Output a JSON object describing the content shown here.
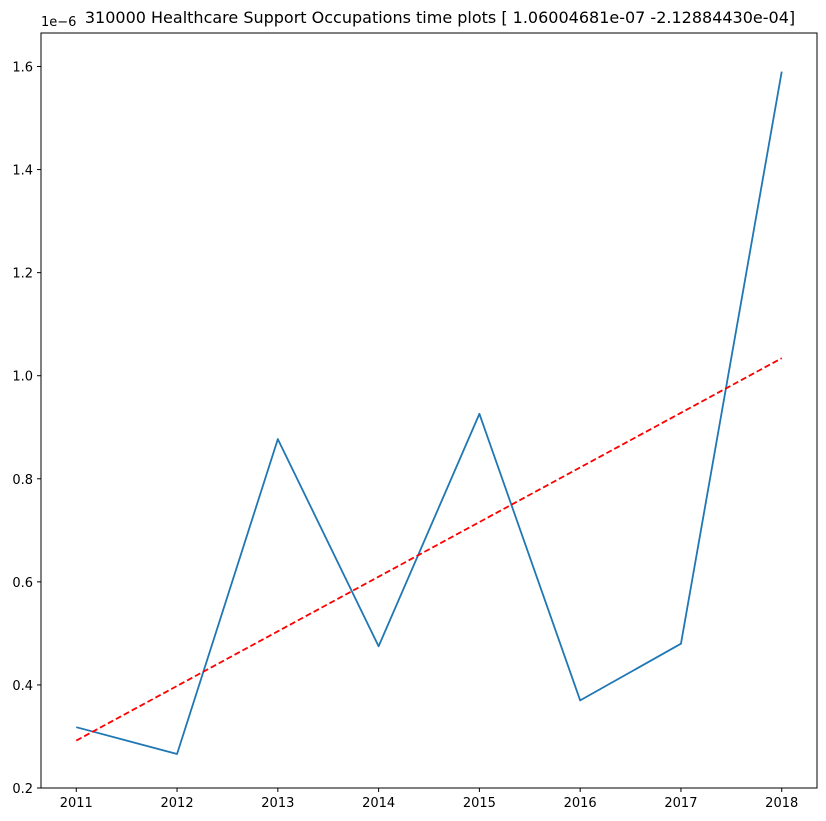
{
  "chart_data": {
    "type": "line",
    "title": "310000 Healthcare Support Occupations time plots [ 1.06004681e-07 -2.12884430e-04]",
    "y_offset_label": "1e−6",
    "xlabel": "",
    "ylabel": "",
    "x": [
      2011,
      2012,
      2013,
      2014,
      2015,
      2016,
      2017,
      2018
    ],
    "x_tick_labels": [
      "2011",
      "2012",
      "2013",
      "2014",
      "2015",
      "2016",
      "2017",
      "2018"
    ],
    "xlim": [
      2010.65,
      2018.35
    ],
    "y_ticks": [
      0.2,
      0.4,
      0.6,
      0.8,
      1.0,
      1.2,
      1.4,
      1.6
    ],
    "y_tick_labels": [
      "0.2",
      "0.4",
      "0.6",
      "0.8",
      "1.0",
      "1.2",
      "1.4",
      "1.6"
    ],
    "ylim": [
      0.2,
      1.665
    ],
    "grid": false,
    "series": [
      {
        "values": [
          0.318,
          0.266,
          0.877,
          0.475,
          0.926,
          0.37,
          0.48,
          1.59
        ],
        "color": "#1f77b4",
        "style": "solid"
      },
      {
        "values": [
          0.292,
          0.398,
          0.504,
          0.61,
          0.716,
          0.822,
          0.928,
          1.034
        ],
        "color": "#ff0000",
        "style": "dashed"
      }
    ]
  }
}
